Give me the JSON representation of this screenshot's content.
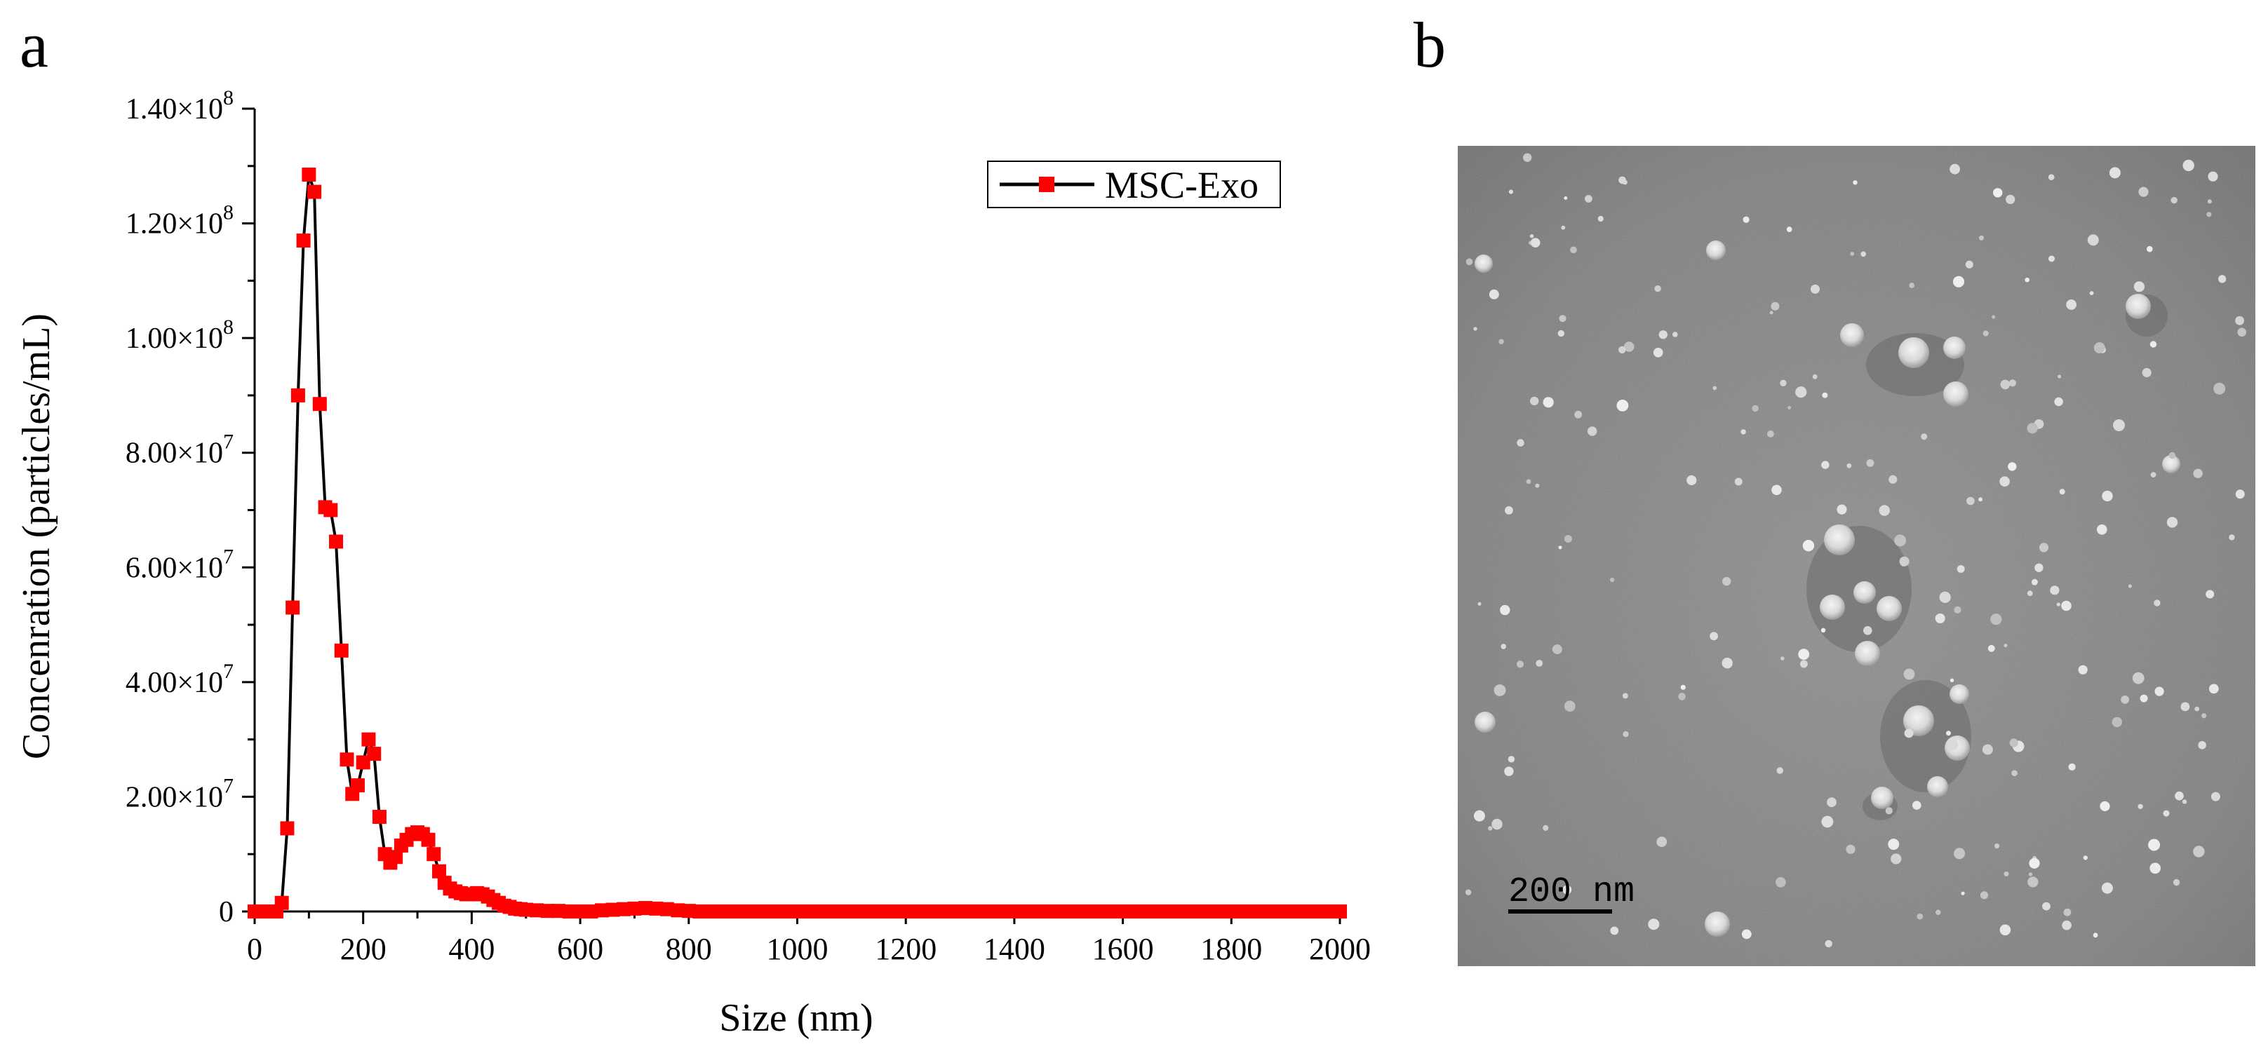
{
  "panels": {
    "a_label": "a",
    "b_label": "b"
  },
  "chart_data": {
    "type": "line",
    "xlabel": "Size (nm)",
    "ylabel": "Concenration (particles/mL)",
    "xlim": [
      0,
      2000
    ],
    "ylim": [
      0,
      140000000
    ],
    "x_ticks": [
      0,
      200,
      400,
      600,
      800,
      1000,
      1200,
      1400,
      1600,
      1800,
      2000
    ],
    "y_ticks": [
      {
        "value": 0,
        "mantissa": "0",
        "exp": ""
      },
      {
        "value": 20000000,
        "mantissa": "2.00×10",
        "exp": "7"
      },
      {
        "value": 40000000,
        "mantissa": "4.00×10",
        "exp": "7"
      },
      {
        "value": 60000000,
        "mantissa": "6.00×10",
        "exp": "7"
      },
      {
        "value": 80000000,
        "mantissa": "8.00×10",
        "exp": "7"
      },
      {
        "value": 100000000,
        "mantissa": "1.00×10",
        "exp": "8"
      },
      {
        "value": 120000000,
        "mantissa": "1.20×10",
        "exp": "8"
      },
      {
        "value": 140000000,
        "mantissa": "1.40×10",
        "exp": "8"
      }
    ],
    "grid": false,
    "legend_position": "top-right",
    "series": [
      {
        "name": "MSC-Exo",
        "line_color": "#000000",
        "marker_color": "#ff0000",
        "marker": "square",
        "points": [
          [
            0,
            0
          ],
          [
            10,
            0
          ],
          [
            20,
            0
          ],
          [
            30,
            0
          ],
          [
            40,
            0
          ],
          [
            50,
            0.15
          ],
          [
            60,
            1.45
          ],
          [
            70,
            5.3
          ],
          [
            80,
            9.0
          ],
          [
            90,
            11.7
          ],
          [
            100,
            12.85
          ],
          [
            110,
            12.55
          ],
          [
            120,
            8.85
          ],
          [
            130,
            7.05
          ],
          [
            140,
            7.0
          ],
          [
            150,
            6.45
          ],
          [
            160,
            4.55
          ],
          [
            170,
            2.65
          ],
          [
            180,
            2.05
          ],
          [
            190,
            2.2
          ],
          [
            200,
            2.6
          ],
          [
            210,
            3.0
          ],
          [
            220,
            2.75
          ],
          [
            230,
            1.65
          ],
          [
            240,
            1.0
          ],
          [
            250,
            0.85
          ],
          [
            260,
            0.95
          ],
          [
            270,
            1.15
          ],
          [
            280,
            1.25
          ],
          [
            290,
            1.35
          ],
          [
            300,
            1.38
          ],
          [
            310,
            1.35
          ],
          [
            320,
            1.25
          ],
          [
            330,
            1.0
          ],
          [
            340,
            0.7
          ],
          [
            350,
            0.5
          ],
          [
            360,
            0.4
          ],
          [
            370,
            0.35
          ],
          [
            380,
            0.32
          ],
          [
            390,
            0.3
          ],
          [
            400,
            0.3
          ],
          [
            410,
            0.32
          ],
          [
            420,
            0.3
          ],
          [
            430,
            0.26
          ],
          [
            440,
            0.2
          ],
          [
            450,
            0.15
          ],
          [
            460,
            0.1
          ],
          [
            470,
            0.08
          ],
          [
            480,
            0.05
          ],
          [
            490,
            0.04
          ],
          [
            500,
            0.03
          ],
          [
            520,
            0.02
          ],
          [
            540,
            0.01
          ],
          [
            560,
            0.01
          ],
          [
            580,
            0.0
          ],
          [
            600,
            0.0
          ],
          [
            620,
            0.0
          ],
          [
            640,
            0.02
          ],
          [
            660,
            0.03
          ],
          [
            680,
            0.04
          ],
          [
            700,
            0.05
          ],
          [
            720,
            0.06
          ],
          [
            740,
            0.05
          ],
          [
            760,
            0.04
          ],
          [
            780,
            0.02
          ],
          [
            800,
            0.01
          ],
          [
            820,
            0
          ],
          [
            840,
            0
          ],
          [
            860,
            0
          ],
          [
            880,
            0
          ],
          [
            900,
            0
          ],
          [
            920,
            0
          ],
          [
            940,
            0
          ],
          [
            960,
            0
          ],
          [
            980,
            0
          ],
          [
            1000,
            0
          ],
          [
            1020,
            0
          ],
          [
            1040,
            0
          ],
          [
            1060,
            0
          ],
          [
            1080,
            0
          ],
          [
            1100,
            0
          ],
          [
            1120,
            0
          ],
          [
            1140,
            0
          ],
          [
            1160,
            0
          ],
          [
            1180,
            0
          ],
          [
            1200,
            0
          ],
          [
            1220,
            0
          ],
          [
            1240,
            0
          ],
          [
            1260,
            0
          ],
          [
            1280,
            0
          ],
          [
            1300,
            0
          ],
          [
            1320,
            0
          ],
          [
            1340,
            0
          ],
          [
            1360,
            0
          ],
          [
            1380,
            0
          ],
          [
            1400,
            0
          ],
          [
            1420,
            0
          ],
          [
            1440,
            0
          ],
          [
            1460,
            0
          ],
          [
            1480,
            0
          ],
          [
            1500,
            0
          ],
          [
            1520,
            0
          ],
          [
            1540,
            0
          ],
          [
            1560,
            0
          ],
          [
            1580,
            0
          ],
          [
            1600,
            0
          ],
          [
            1620,
            0
          ],
          [
            1640,
            0
          ],
          [
            1660,
            0
          ],
          [
            1680,
            0
          ],
          [
            1700,
            0
          ],
          [
            1720,
            0
          ],
          [
            1740,
            0
          ],
          [
            1760,
            0
          ],
          [
            1780,
            0
          ],
          [
            1800,
            0
          ],
          [
            1820,
            0
          ],
          [
            1840,
            0
          ],
          [
            1860,
            0
          ],
          [
            1880,
            0
          ],
          [
            1900,
            0
          ],
          [
            1920,
            0
          ],
          [
            1940,
            0
          ],
          [
            1960,
            0
          ],
          [
            1980,
            0
          ],
          [
            2000,
            0
          ]
        ],
        "y_multiplier": 10000000
      }
    ]
  },
  "micrograph": {
    "scale_bar_label": "200 nm"
  }
}
